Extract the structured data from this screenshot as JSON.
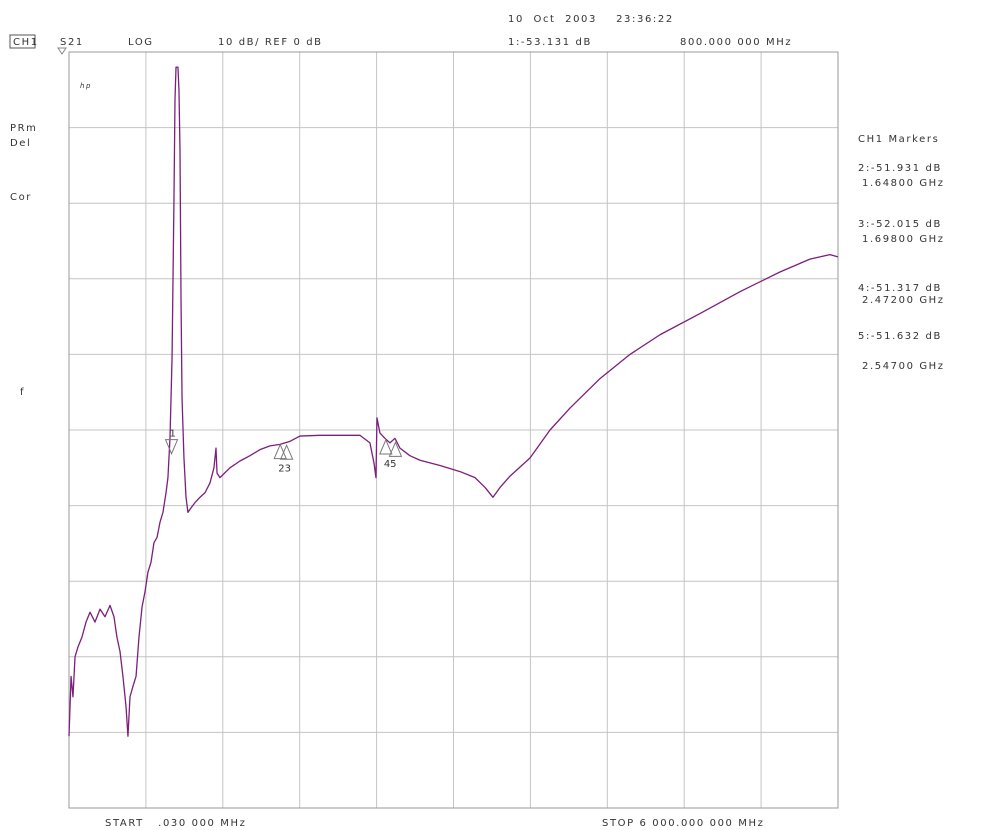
{
  "chart_data": {
    "type": "line",
    "header": {
      "channel": "CH1",
      "parameter": "S21",
      "format": "LOG",
      "scale": "10 dB/ REF 0 dB",
      "timestamp": "10  Oct  2003    23:36:22",
      "active_marker": "1:-53.131 dB",
      "active_marker_freq": "800.000 000 MHz"
    },
    "left_labels": [
      "PRm",
      "Del",
      "Cor",
      "f"
    ],
    "logo": "hp",
    "start_label": "START   .030 000 MHz",
    "stop_label": "STOP 6 000.000 000 MHz",
    "marker_panel_title": "CH1 Markers",
    "markers": [
      {
        "name": "1",
        "x": 800,
        "y": -53.131
      },
      {
        "name": "2",
        "x": 1648,
        "y": -51.931,
        "value_label": "2:-51.931 dB",
        "x_label": "1.64800 GHz"
      },
      {
        "name": "3",
        "x": 1698,
        "y": -52.015,
        "value_label": "3:-52.015 dB",
        "x_label": "1.69800 GHz"
      },
      {
        "name": "4",
        "x": 2472,
        "y": -51.317,
        "value_label": "4:-51.317 dB",
        "x_label": "2.47200 GHz"
      },
      {
        "name": "5",
        "x": 2547,
        "y": -51.632,
        "value_label": "5:-51.632 dB",
        "x_label": "2.54700 GHz"
      }
    ],
    "marker_tags": [
      "1",
      "23",
      "45"
    ],
    "xlim": [
      0.03,
      6000
    ],
    "ylim": [
      -100,
      0
    ],
    "xticks": [
      0.03,
      600,
      1200,
      1800,
      2400,
      3000,
      3600,
      4200,
      4800,
      5400,
      6000
    ],
    "yticks": [
      -100,
      -90,
      -80,
      -70,
      -60,
      -50,
      -40,
      -30,
      -20,
      -10,
      0
    ],
    "grid": true,
    "color": "#7b1f7b",
    "x": [
      0.03,
      16,
      31,
      47,
      70,
      101,
      133,
      164,
      203,
      242,
      281,
      320,
      351,
      374,
      398,
      421,
      445,
      460,
      476,
      499,
      523,
      546,
      570,
      593,
      616,
      640,
      663,
      687,
      710,
      733,
      757,
      772,
      788,
      804,
      819,
      827,
      835,
      850,
      858,
      866,
      874,
      882,
      897,
      913,
      928,
      952,
      983,
      1022,
      1061,
      1100,
      1131,
      1147,
      1155,
      1178,
      1256,
      1334,
      1412,
      1490,
      1568,
      1646,
      1724,
      1802,
      1958,
      2114,
      2270,
      2348,
      2380,
      2395,
      2403,
      2426,
      2465,
      2504,
      2543,
      2582,
      2660,
      2739,
      2895,
      3051,
      3168,
      3246,
      3308,
      3363,
      3441,
      3597,
      3753,
      3909,
      4143,
      4377,
      4611,
      4923,
      5235,
      5547,
      5781,
      5937,
      6000
    ],
    "values": [
      -90.5,
      -82.6,
      -85.3,
      -80.0,
      -78.7,
      -77.4,
      -75.4,
      -74.1,
      -75.4,
      -73.7,
      -74.7,
      -73.2,
      -74.7,
      -77.4,
      -79.3,
      -82.6,
      -86.6,
      -90.5,
      -85.3,
      -83.9,
      -82.6,
      -77.4,
      -73.4,
      -71.4,
      -68.8,
      -67.5,
      -64.9,
      -64.2,
      -62.2,
      -60.9,
      -58.3,
      -56.3,
      -51.1,
      -40.5,
      -19.5,
      -6.3,
      -2.0,
      -2.0,
      -5.0,
      -12.9,
      -32.6,
      -45.8,
      -53.7,
      -58.9,
      -60.9,
      -60.3,
      -59.6,
      -58.9,
      -58.3,
      -57.0,
      -55.0,
      -52.4,
      -55.7,
      -56.3,
      -55.0,
      -54.1,
      -53.4,
      -52.6,
      -52.1,
      -51.9,
      -51.5,
      -50.8,
      -50.7,
      -50.7,
      -50.7,
      -51.7,
      -54.4,
      -56.3,
      -48.4,
      -50.4,
      -51.1,
      -51.7,
      -51.1,
      -52.4,
      -53.4,
      -54.0,
      -54.7,
      -55.5,
      -56.3,
      -57.6,
      -58.9,
      -57.6,
      -56.1,
      -53.7,
      -50.0,
      -47.1,
      -43.2,
      -40.0,
      -37.4,
      -34.6,
      -31.7,
      -29.1,
      -27.4,
      -26.8,
      -27.1
    ]
  }
}
